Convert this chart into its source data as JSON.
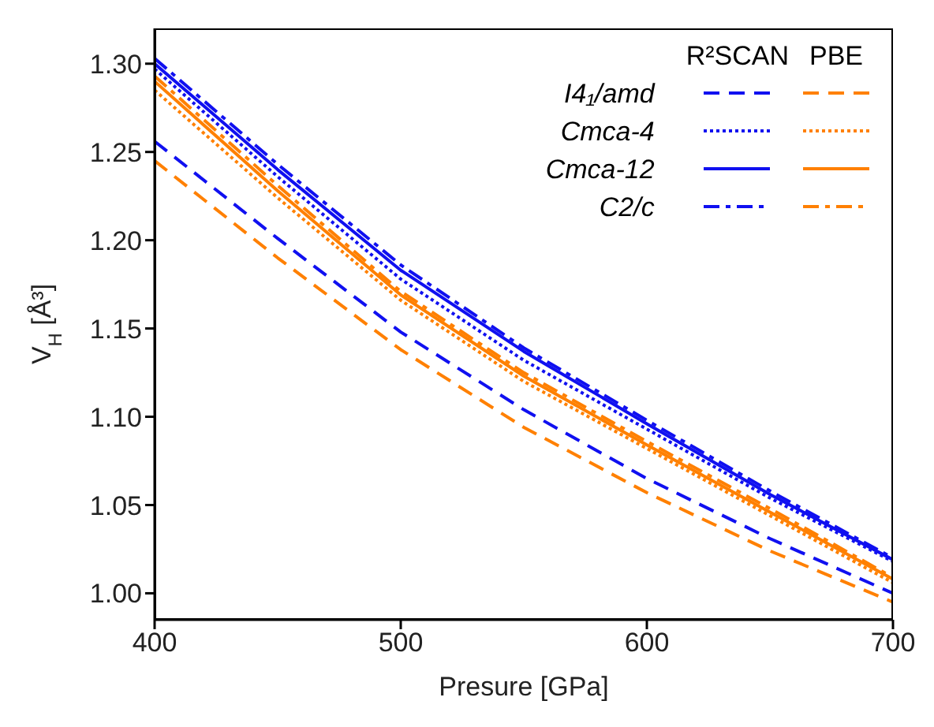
{
  "chart_data": {
    "type": "line",
    "xlabel": "Presure [GPa]",
    "ylabel": "V$_{H}$ [Å³]",
    "x": [
      400,
      450,
      500,
      550,
      600,
      650,
      700
    ],
    "xlim": [
      400,
      700
    ],
    "xticks": [
      400,
      500,
      600,
      700
    ],
    "ylim": [
      0.985,
      1.32
    ],
    "yticks": [
      {
        "value": 1,
        "label": "1.00"
      },
      1.05,
      {
        "value": 1.1,
        "label": "1.10"
      },
      1.15,
      {
        "value": 1.2,
        "label": "1.20"
      },
      1.25,
      {
        "value": 1.3,
        "label": "1.30"
      }
    ],
    "grid": false,
    "legend": "top right",
    "marker": "none",
    "annotations": [
      "R²SCAN",
      "PBE"
    ],
    "series": [
      {
        "name": "I4₁/amd",
        "color": "#1010f0",
        "line_style": "dashed",
        "values": [
          1.256,
          1.201,
          1.148,
          1.104,
          1.065,
          1.031,
          1.0
        ]
      },
      {
        "name": "Cmca-4",
        "color": "#1010f0",
        "line_style": "dotted",
        "values": [
          1.297,
          1.236,
          1.178,
          1.132,
          1.093,
          1.054,
          1.018
        ]
      },
      {
        "name": "Cmca-12",
        "color": "#1010f0",
        "line_style": "solid",
        "values": [
          1.3,
          1.24,
          1.183,
          1.137,
          1.096,
          1.056,
          1.019
        ]
      },
      {
        "name": "C2/c",
        "color": "#1010f0",
        "line_style": "dashdot",
        "values": [
          1.303,
          1.243,
          1.186,
          1.139,
          1.098,
          1.058,
          1.02
        ]
      },
      {
        "color": "#ff8000",
        "line_style": "dashed",
        "values": [
          1.245,
          1.19,
          1.138,
          1.094,
          1.057,
          1.024,
          0.995
        ]
      },
      {
        "color": "#ff8000",
        "line_style": "dotted",
        "values": [
          1.285,
          1.224,
          1.166,
          1.12,
          1.082,
          1.044,
          1.006
        ]
      },
      {
        "color": "#ff8000",
        "line_style": "solid",
        "values": [
          1.29,
          1.228,
          1.169,
          1.123,
          1.084,
          1.046,
          1.008
        ]
      },
      {
        "color": "#ff8000",
        "line_style": "dashdot",
        "values": [
          1.293,
          1.231,
          1.171,
          1.125,
          1.086,
          1.048,
          1.009
        ]
      }
    ]
  }
}
